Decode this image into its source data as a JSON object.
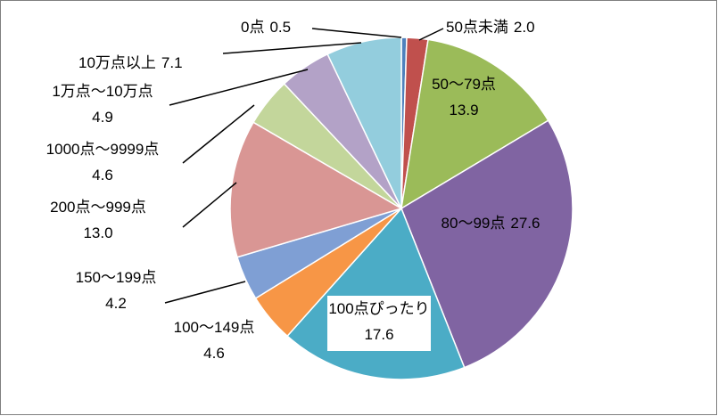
{
  "chart_data": {
    "type": "pie",
    "categories": [
      "0点",
      "50点未満",
      "50～79点",
      "80～99点",
      "100点ぴったり",
      "100～149点",
      "150～199点",
      "200点～999点",
      "1000点～9999点",
      "1万点～10万点",
      "10万点以上"
    ],
    "values": [
      0.5,
      2.0,
      13.9,
      27.6,
      17.6,
      4.6,
      4.2,
      13.0,
      4.6,
      4.9,
      7.1
    ],
    "value_labels": [
      "0.5",
      "2.0",
      "13.9",
      "27.6",
      "17.6",
      "4.6",
      "4.2",
      "13.0",
      "4.6",
      "4.9",
      "7.1"
    ],
    "colors": [
      "#4f81bd",
      "#c0504d",
      "#9bbb59",
      "#8064a2",
      "#4bacc6",
      "#f79646",
      "#7f9fd4",
      "#d99694",
      "#c3d69b",
      "#b3a2c7",
      "#93cddd"
    ]
  }
}
